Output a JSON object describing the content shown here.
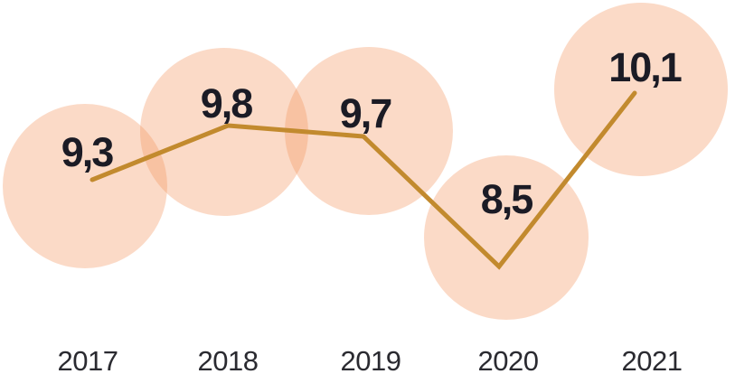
{
  "chart_data": {
    "type": "line",
    "title": "",
    "xlabel": "",
    "ylabel": "",
    "categories": [
      "2017",
      "2018",
      "2019",
      "2020",
      "2021"
    ],
    "values": [
      9.3,
      9.8,
      9.7,
      8.5,
      10.1
    ],
    "value_labels": [
      "9,3",
      "9,8",
      "9,7",
      "8,5",
      "10,1"
    ],
    "decimal_separator": ",",
    "grid": false,
    "legend": "none",
    "background_color": "#ffffff",
    "line_color": "#c28a2e",
    "bubble_color": "#f4965e",
    "bubble_opacity": 0.35,
    "value_label_color": "#1b1b25",
    "year_label_color": "#2a2a30"
  }
}
